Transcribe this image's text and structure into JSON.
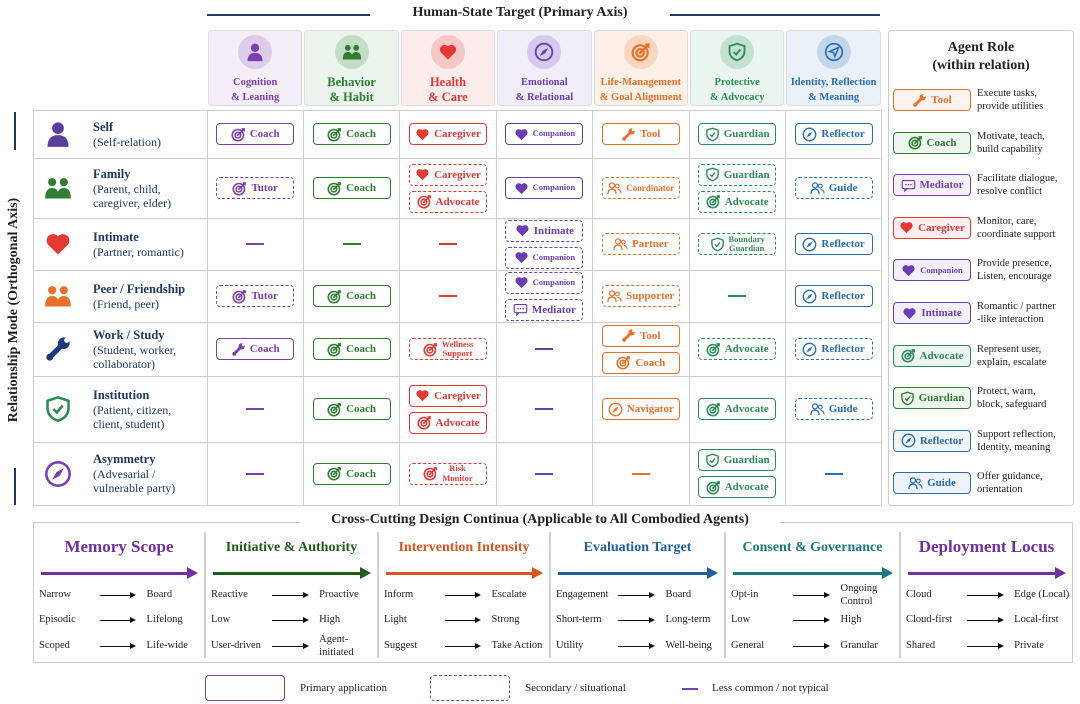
{
  "header": {
    "title": "Human-State Target (Primary Axis)",
    "axis_label": "Relationship Mode (Orthogonal Axis)"
  },
  "columns": [
    {
      "label": "Cognition\n& Leaning",
      "icon": "person",
      "color": "#7b3fb0",
      "bg": "#f4eef9"
    },
    {
      "label": "Behavior\n& Habit",
      "icon": "people",
      "color": "#2e7d32",
      "bg": "#ecf5ec"
    },
    {
      "label": "Health\n& Care",
      "icon": "heart",
      "color": "#e53935",
      "bg": "#fcecec"
    },
    {
      "label": "Emotional\n& Relational",
      "icon": "compass",
      "color": "#6a3fb5",
      "bg": "#f1edf9"
    },
    {
      "label": "Life-Management\n& Goal Alignment",
      "icon": "target",
      "color": "#e8702a",
      "bg": "#fdf1e7"
    },
    {
      "label": "Protective\n& Advocacy",
      "icon": "shield",
      "color": "#2e8b57",
      "bg": "#eaf5ef"
    },
    {
      "label": "Identity, Reflection\n& Meaning",
      "icon": "plane",
      "color": "#2a6db5",
      "bg": "#ebf1f9"
    }
  ],
  "rows": [
    {
      "name": "Self",
      "sub": "(Self-relation)",
      "icon": "person",
      "color": "#5b3fa0",
      "cells": [
        [
          {
            "icon": "target",
            "label": "Coach",
            "style": "primary"
          }
        ],
        [
          {
            "icon": "target",
            "label": "Coach",
            "style": "primary"
          }
        ],
        [
          {
            "icon": "heart",
            "label": "Caregiver",
            "style": "primary"
          }
        ],
        [
          {
            "icon": "heart",
            "label": "Companion",
            "style": "primary"
          }
        ],
        [
          {
            "icon": "wrench",
            "label": "Tool",
            "style": "primary"
          }
        ],
        [
          {
            "icon": "shield",
            "label": "Guardian",
            "style": "primary"
          }
        ],
        [
          {
            "icon": "compass",
            "label": "Reflector",
            "style": "primary"
          }
        ]
      ]
    },
    {
      "name": "Family",
      "sub": "(Parent, child,\ncaregiver, elder)",
      "icon": "people",
      "color": "#2e7d32",
      "cells": [
        [
          {
            "icon": "target",
            "label": "Tutor",
            "style": "secondary"
          }
        ],
        [
          {
            "icon": "target",
            "label": "Coach",
            "style": "primary"
          }
        ],
        [
          {
            "icon": "heart",
            "label": "Caregiver",
            "style": "secondary"
          },
          {
            "icon": "target",
            "label": "Advocate",
            "style": "secondary"
          }
        ],
        [
          {
            "icon": "heart",
            "label": "Companion",
            "style": "primary"
          }
        ],
        [
          {
            "icon": "guide",
            "label": "Coordinator",
            "style": "secondary"
          }
        ],
        [
          {
            "icon": "shield",
            "label": "Guardian",
            "style": "secondary"
          },
          {
            "icon": "target",
            "label": "Advocate",
            "style": "secondary"
          }
        ],
        [
          {
            "icon": "guide",
            "label": "Guide",
            "style": "secondary"
          }
        ]
      ]
    },
    {
      "name": "Intimate",
      "sub": "(Partner, romantic)",
      "icon": "heart",
      "color": "#e53935",
      "cells": [
        [],
        [],
        [],
        [
          {
            "icon": "heart",
            "label": "Intimate",
            "style": "secondary"
          },
          {
            "icon": "heart",
            "label": "Companion",
            "style": "secondary"
          }
        ],
        [
          {
            "icon": "guide",
            "label": "Partner",
            "style": "secondary"
          }
        ],
        [
          {
            "icon": "shield",
            "label": "Boundary\nGuardian",
            "style": "secondary"
          }
        ],
        [
          {
            "icon": "compass",
            "label": "Reflector",
            "style": "primary"
          }
        ]
      ]
    },
    {
      "name": "Peer / Friendship",
      "sub": "(Friend, peer)",
      "icon": "people",
      "color": "#e8702a",
      "cells": [
        [
          {
            "icon": "target",
            "label": "Tutor",
            "style": "secondary"
          }
        ],
        [
          {
            "icon": "target",
            "label": "Coach",
            "style": "primary"
          }
        ],
        [],
        [
          {
            "icon": "heart",
            "label": "Companion",
            "style": "secondary"
          },
          {
            "icon": "mediator",
            "label": "Mediator",
            "style": "secondary"
          }
        ],
        [
          {
            "icon": "guide",
            "label": "Supporter",
            "style": "secondary"
          }
        ],
        [],
        [
          {
            "icon": "compass",
            "label": "Reflector",
            "style": "primary"
          }
        ]
      ]
    },
    {
      "name": "Work / Study",
      "sub": "(Student, worker,\ncollaborator)",
      "icon": "wrench",
      "color": "#1f3a7a",
      "cells": [
        [
          {
            "icon": "wrench",
            "label": "Coach",
            "style": "primary"
          }
        ],
        [
          {
            "icon": "target",
            "label": "Coach",
            "style": "primary"
          }
        ],
        [
          {
            "icon": "target",
            "label": "Wellness\nSupport",
            "style": "secondary"
          }
        ],
        [],
        [
          {
            "icon": "wrench",
            "label": "Tool",
            "style": "primary"
          },
          {
            "icon": "target",
            "label": "Coach",
            "style": "primary"
          }
        ],
        [
          {
            "icon": "target",
            "label": "Advocate",
            "style": "secondary"
          }
        ],
        [
          {
            "icon": "compass",
            "label": "Reflector",
            "style": "secondary"
          }
        ]
      ]
    },
    {
      "name": "Institution",
      "sub": "(Patient, citizen,\nclient, student)",
      "icon": "shield",
      "color": "#2e8b57",
      "cells": [
        [],
        [
          {
            "icon": "target",
            "label": "Coach",
            "style": "primary"
          }
        ],
        [
          {
            "icon": "heart",
            "label": "Caregiver",
            "style": "primary"
          },
          {
            "icon": "target",
            "label": "Advocate",
            "style": "primary"
          }
        ],
        [],
        [
          {
            "icon": "compass",
            "label": "Navigator",
            "style": "primary"
          }
        ],
        [
          {
            "icon": "target",
            "label": "Advocate",
            "style": "primary"
          }
        ],
        [
          {
            "icon": "guide",
            "label": "Guide",
            "style": "secondary"
          }
        ]
      ]
    },
    {
      "name": "Asymmetry",
      "sub": "(Advesarial /\nvulnerable party)",
      "icon": "compass",
      "color": "#7b3fb0",
      "cells": [
        [],
        [
          {
            "icon": "target",
            "label": "Coach",
            "style": "primary"
          }
        ],
        [
          {
            "icon": "target",
            "label": "Risk\nMonitor",
            "style": "secondary"
          }
        ],
        [],
        [],
        [
          {
            "icon": "shield",
            "label": "Guardian",
            "style": "primary"
          },
          {
            "icon": "target",
            "label": "Advocate",
            "style": "primary"
          }
        ],
        []
      ]
    }
  ],
  "roles": {
    "title": "Agent Role\n(within relation)",
    "items": [
      {
        "label": "Tool",
        "icon": "wrench",
        "color": "#e8702a",
        "desc": "Execute tasks,\nprovide utilities"
      },
      {
        "label": "Coach",
        "icon": "target",
        "color": "#2e7d32",
        "desc": "Motivate, teach,\nbuild capability"
      },
      {
        "label": "Mediator",
        "icon": "mediator",
        "color": "#7b3fb0",
        "desc": "Facilitate dialogue,\nresolve conflict"
      },
      {
        "label": "Caregiver",
        "icon": "heart",
        "color": "#e53935",
        "desc": "Monitor, care,\ncoordinate support"
      },
      {
        "label": "Companion",
        "icon": "heart",
        "color": "#6a3fb5",
        "desc": "Provide presence,\nListen, encourage"
      },
      {
        "label": "Intimate",
        "icon": "heart",
        "color": "#6a3fb5",
        "desc": "Romantic / partner\n-like interaction"
      },
      {
        "label": "Advocate",
        "icon": "target",
        "color": "#2e8b57",
        "desc": "Represent user,\nexplain, escalate"
      },
      {
        "label": "Guardian",
        "icon": "shield",
        "color": "#2e7d32",
        "desc": "Protect, warn,\nblock, safeguard"
      },
      {
        "label": "Reflector",
        "icon": "compass",
        "color": "#2a6db5",
        "desc": "Support reflection,\nIdentity, meaning"
      },
      {
        "label": "Guide",
        "icon": "guide",
        "color": "#2a6db5",
        "desc": "Offer guidance,\norientation"
      }
    ]
  },
  "continua": {
    "title": "Cross-Cutting Design Continua (Applicable to All Combodied Agents)",
    "sections": [
      {
        "title": "Memory Scope",
        "color": "#7030a0",
        "pairs": [
          [
            "Narrow",
            "Board"
          ],
          [
            "Episodic",
            "Lifelong"
          ],
          [
            "Scoped",
            "Life-wide"
          ]
        ]
      },
      {
        "title": "Initiative & Authority",
        "color": "#1e5c1e",
        "pairs": [
          [
            "Reactive",
            "Proactive"
          ],
          [
            "Low",
            "High"
          ],
          [
            "User-driven",
            "Agent-\ninitiated"
          ]
        ]
      },
      {
        "title": "Intervention Intensity",
        "color": "#d9541e",
        "pairs": [
          [
            "Inform",
            "Escalate"
          ],
          [
            "Light",
            "Strong"
          ],
          [
            "Suggest",
            "Take Action"
          ]
        ]
      },
      {
        "title": "Evaluation Target",
        "color": "#1f5f9f",
        "pairs": [
          [
            "Engagement",
            "Board"
          ],
          [
            "Short-term",
            "Long-term"
          ],
          [
            "Utility",
            "Well-being"
          ]
        ]
      },
      {
        "title": "Consent & Governance",
        "color": "#1a7a80",
        "pairs": [
          [
            "Opt-in",
            "Ongoing\nControl"
          ],
          [
            "Low",
            "High"
          ],
          [
            "General",
            "Granular"
          ]
        ]
      },
      {
        "title": "Deployment Locus",
        "color": "#7030a0",
        "pairs": [
          [
            "Cloud",
            "Edge (Local)"
          ],
          [
            "Cloud-first",
            "Local-first"
          ],
          [
            "Shared",
            "Private"
          ]
        ]
      }
    ]
  },
  "legend": [
    {
      "label": "Primary application",
      "style": "primary"
    },
    {
      "label": "Secondary / situational",
      "style": "secondary"
    },
    {
      "label": "Less common / not typical",
      "style": "dash"
    }
  ]
}
